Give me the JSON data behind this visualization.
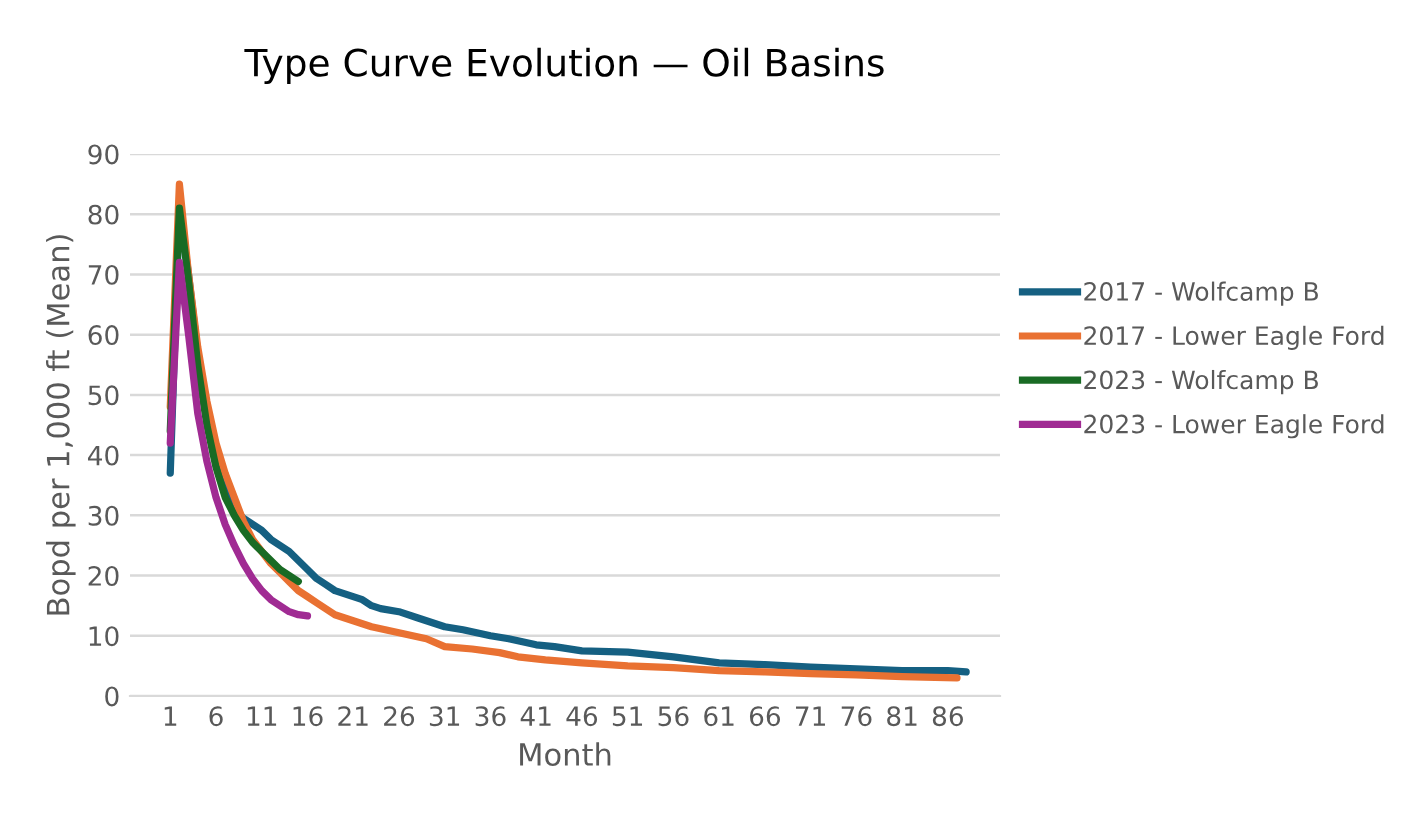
{
  "chart_data": {
    "type": "line",
    "title": "Type Curve Evolution — Oil Basins",
    "xlabel": "Month",
    "ylabel": "Bopd per 1,000 ft (Mean)",
    "xlim": [
      -3.4,
      91.7
    ],
    "xticks": [
      1,
      6,
      11,
      16,
      21,
      26,
      31,
      36,
      41,
      46,
      51,
      56,
      61,
      66,
      71,
      76,
      81,
      86
    ],
    "ylim": [
      0,
      90
    ],
    "yticks": [
      0,
      10,
      20,
      30,
      40,
      50,
      60,
      70,
      80,
      90
    ],
    "grid": "y",
    "legend": "right",
    "line_style": "solid",
    "marker": "none",
    "series": [
      {
        "name": "2017 - Wolfcamp B",
        "color": "#156082",
        "x": [
          1,
          2,
          3,
          4,
          5,
          6,
          7,
          8,
          9,
          10,
          11,
          12,
          13,
          14,
          15,
          16,
          17,
          18,
          19,
          20,
          21,
          22,
          23,
          24,
          26,
          28,
          30,
          31,
          33,
          36,
          38,
          41,
          43,
          46,
          51,
          56,
          61,
          66,
          71,
          76,
          81,
          86,
          88
        ],
        "values": [
          37,
          81,
          70,
          57,
          46,
          39,
          34,
          31,
          29.5,
          28.5,
          27.5,
          26,
          25,
          24,
          22.5,
          21,
          19.5,
          18.5,
          17.5,
          17,
          16.5,
          16,
          15,
          14.5,
          14,
          13,
          12,
          11.5,
          11,
          10,
          9.5,
          8.5,
          8.2,
          7.5,
          7.3,
          6.5,
          5.5,
          5.2,
          4.8,
          4.5,
          4.2,
          4.2,
          4
        ]
      },
      {
        "name": "2017 - Lower Eagle Ford",
        "color": "#e97132",
        "x": [
          1,
          2,
          3,
          4,
          5,
          6,
          7,
          8,
          9,
          10,
          11,
          12,
          13,
          14,
          15,
          16,
          17,
          18,
          19,
          20,
          21,
          23,
          26,
          29,
          31,
          34,
          37,
          39,
          42,
          46,
          51,
          56,
          61,
          66,
          71,
          76,
          81,
          87
        ],
        "values": [
          48,
          85,
          70,
          58,
          49,
          42,
          37,
          33,
          29,
          26,
          24,
          22,
          20.5,
          19,
          17.5,
          16.5,
          15.5,
          14.5,
          13.5,
          13,
          12.5,
          11.5,
          10.5,
          9.5,
          8.2,
          7.8,
          7.2,
          6.5,
          6,
          5.5,
          5,
          4.7,
          4.2,
          4,
          3.7,
          3.5,
          3.2,
          3
        ]
      },
      {
        "name": "2023 - Wolfcamp B",
        "color": "#196b24",
        "x": [
          1,
          2,
          3,
          4,
          5,
          6,
          7,
          8,
          9,
          10,
          11,
          12,
          13,
          14,
          15
        ],
        "values": [
          44,
          81,
          69,
          55,
          45,
          38,
          33,
          30,
          27.5,
          25.5,
          24,
          22.5,
          21,
          20,
          19
        ]
      },
      {
        "name": "2023 - Lower Eagle Ford",
        "color": "#a02b93",
        "x": [
          1,
          2,
          3,
          4,
          5,
          6,
          7,
          8,
          9,
          10,
          11,
          12,
          13,
          14,
          15,
          16
        ],
        "values": [
          42,
          72,
          60,
          47,
          39,
          33,
          28.5,
          25,
          22,
          19.5,
          17.5,
          16,
          15,
          14,
          13.5,
          13.3
        ]
      }
    ]
  }
}
